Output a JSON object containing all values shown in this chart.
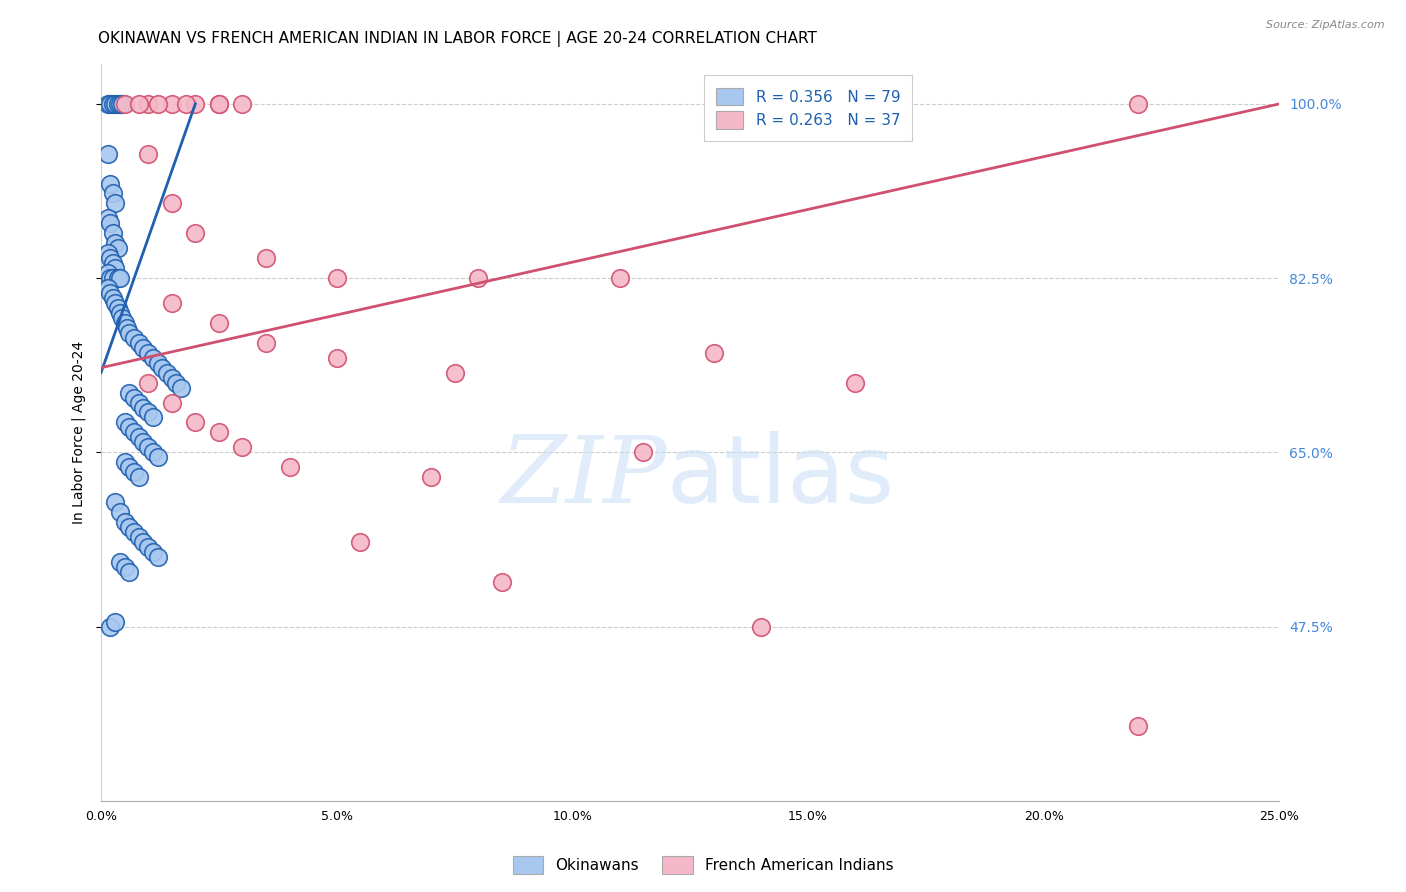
{
  "title": "OKINAWAN VS FRENCH AMERICAN INDIAN IN LABOR FORCE | AGE 20-24 CORRELATION CHART",
  "source": "Source: ZipAtlas.com",
  "ylabel": "In Labor Force | Age 20-24",
  "x_tick_labels": [
    "0.0%",
    "5.0%",
    "10.0%",
    "15.0%",
    "20.0%",
    "25.0%"
  ],
  "x_tick_values": [
    0.0,
    5.0,
    10.0,
    15.0,
    20.0,
    25.0
  ],
  "y_tick_labels": [
    "100.0%",
    "82.5%",
    "65.0%",
    "47.5%"
  ],
  "y_tick_values": [
    100.0,
    82.5,
    65.0,
    47.5
  ],
  "xlim": [
    0.0,
    25.0
  ],
  "ylim": [
    30.0,
    104.0
  ],
  "legend_r_blue": "R = 0.356",
  "legend_n_blue": "N = 79",
  "legend_r_pink": "R = 0.263",
  "legend_n_pink": "N = 37",
  "legend_label_blue": "Okinawans",
  "legend_label_pink": "French American Indians",
  "blue_color": "#a8c8f0",
  "blue_line_color": "#2060b0",
  "pink_color": "#f5b8c8",
  "pink_line_color": "#d05070",
  "blue_dots_x": [
    0.15,
    0.2,
    0.25,
    0.3,
    0.35,
    0.4,
    0.45,
    0.15,
    0.2,
    0.25,
    0.3,
    0.15,
    0.2,
    0.25,
    0.3,
    0.35,
    0.15,
    0.2,
    0.25,
    0.3,
    0.15,
    0.2,
    0.25,
    0.35,
    0.4,
    0.15,
    0.2,
    0.25,
    0.3,
    0.35,
    0.4,
    0.45,
    0.5,
    0.55,
    0.6,
    0.7,
    0.8,
    0.9,
    1.0,
    1.1,
    1.2,
    1.3,
    1.4,
    1.5,
    1.6,
    1.7,
    0.6,
    0.7,
    0.8,
    0.9,
    1.0,
    1.1,
    0.5,
    0.6,
    0.7,
    0.8,
    0.9,
    1.0,
    1.1,
    1.2,
    0.5,
    0.6,
    0.7,
    0.8,
    0.3,
    0.4,
    0.5,
    0.6,
    0.7,
    0.8,
    0.9,
    1.0,
    1.1,
    1.2,
    0.4,
    0.5,
    0.6,
    0.2,
    0.3
  ],
  "blue_dots_y": [
    100.0,
    100.0,
    100.0,
    100.0,
    100.0,
    100.0,
    100.0,
    95.0,
    92.0,
    91.0,
    90.0,
    88.5,
    88.0,
    87.0,
    86.0,
    85.5,
    85.0,
    84.5,
    84.0,
    83.5,
    83.0,
    82.5,
    82.5,
    82.5,
    82.5,
    81.5,
    81.0,
    80.5,
    80.0,
    79.5,
    79.0,
    78.5,
    78.0,
    77.5,
    77.0,
    76.5,
    76.0,
    75.5,
    75.0,
    74.5,
    74.0,
    73.5,
    73.0,
    72.5,
    72.0,
    71.5,
    71.0,
    70.5,
    70.0,
    69.5,
    69.0,
    68.5,
    68.0,
    67.5,
    67.0,
    66.5,
    66.0,
    65.5,
    65.0,
    64.5,
    64.0,
    63.5,
    63.0,
    62.5,
    60.0,
    59.0,
    58.0,
    57.5,
    57.0,
    56.5,
    56.0,
    55.5,
    55.0,
    54.5,
    54.0,
    53.5,
    53.0,
    47.5,
    48.0
  ],
  "pink_dots_x": [
    0.5,
    1.0,
    1.5,
    2.0,
    2.5,
    3.0,
    0.8,
    1.2,
    1.8,
    2.5,
    1.0,
    1.5,
    2.0,
    3.5,
    5.0,
    8.0,
    11.0,
    13.0,
    16.0,
    22.0,
    1.5,
    2.5,
    3.5,
    5.0,
    7.5,
    1.0,
    1.5,
    2.0,
    2.5,
    3.0,
    4.0,
    7.0,
    11.5,
    5.5,
    8.5,
    14.0,
    22.0
  ],
  "pink_dots_y": [
    100.0,
    100.0,
    100.0,
    100.0,
    100.0,
    100.0,
    100.0,
    100.0,
    100.0,
    100.0,
    95.0,
    90.0,
    87.0,
    84.5,
    82.5,
    82.5,
    82.5,
    75.0,
    72.0,
    100.0,
    80.0,
    78.0,
    76.0,
    74.5,
    73.0,
    72.0,
    70.0,
    68.0,
    67.0,
    65.5,
    63.5,
    62.5,
    65.0,
    56.0,
    52.0,
    47.5,
    37.5
  ],
  "blue_line_x": [
    0.0,
    2.0
  ],
  "blue_line_y": [
    73.0,
    100.0
  ],
  "pink_line_x": [
    0.0,
    25.0
  ],
  "pink_line_y": [
    73.5,
    100.0
  ],
  "watermark_zip": "ZIP",
  "watermark_atlas": "atlas",
  "background_color": "#ffffff",
  "grid_color": "#cccccc",
  "title_fontsize": 11,
  "axis_label_fontsize": 10,
  "tick_fontsize": 9,
  "tick_color_right": "#4488dd",
  "legend_fontsize": 11
}
